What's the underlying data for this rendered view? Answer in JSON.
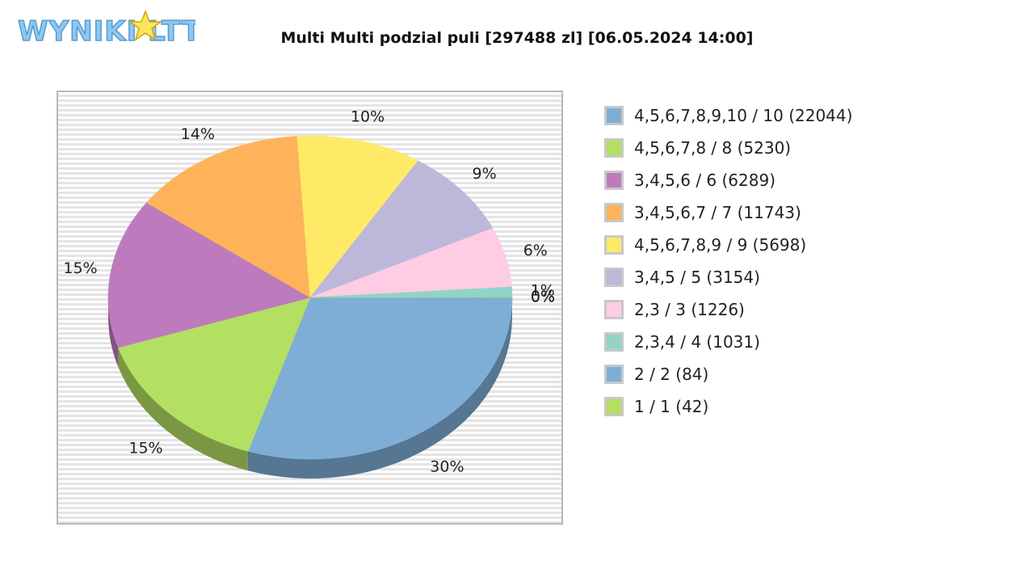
{
  "logo": {
    "text": "WYNIKI LOTTO"
  },
  "chart_data": {
    "type": "pie",
    "title": "Multi Multi podzial puli [297488 zl] [06.05.2024 14:00]",
    "slices": [
      {
        "label": "4,5,6,7,8,9,10 / 10 (22044)",
        "value": 30,
        "display": "30%",
        "color": "#7eaed5"
      },
      {
        "label": "4,5,6,7,8 / 8 (5230)",
        "value": 15,
        "display": "15%",
        "color": "#b3e062"
      },
      {
        "label": "3,4,5,6 / 6 (6289)",
        "value": 15,
        "display": "15%",
        "color": "#bd7bbd"
      },
      {
        "label": "3,4,5,6,7 / 7 (11743)",
        "value": 14,
        "display": "14%",
        "color": "#feb35a"
      },
      {
        "label": "4,5,6,7,8,9 / 9 (5698)",
        "value": 10,
        "display": "10%",
        "color": "#feea67"
      },
      {
        "label": "3,4,5 / 5 (3154)",
        "value": 9,
        "display": "9%",
        "color": "#bdb7d9"
      },
      {
        "label": "2,3 / 3 (1226)",
        "value": 6,
        "display": "6%",
        "color": "#fecce3"
      },
      {
        "label": "2,3,4 / 4 (1031)",
        "value": 1,
        "display": "1%",
        "color": "#90d4c7"
      },
      {
        "label": "2 / 2 (84)",
        "value": 0.03,
        "display": "0%",
        "color": "#7eaed5"
      },
      {
        "label": "1 / 1 (42)",
        "value": 0.01,
        "display": "0%",
        "color": "#b3e062"
      }
    ]
  }
}
